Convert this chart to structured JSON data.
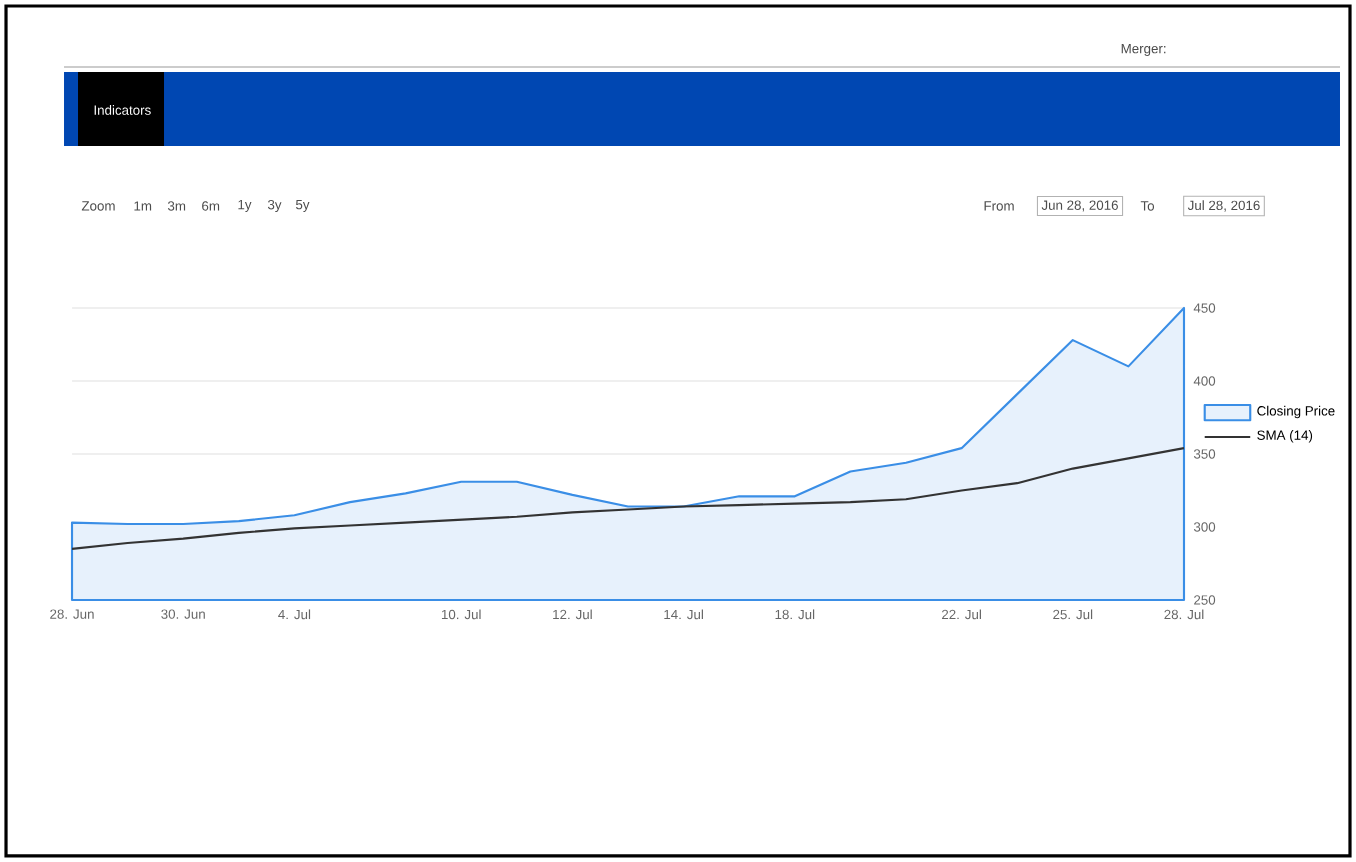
{
  "chart_data": {
    "type": "line",
    "categories": [
      "28. Jun",
      null,
      "30. Jun",
      null,
      "4. Jul",
      null,
      null,
      "10. Jul",
      null,
      "12. Jul",
      null,
      "14. Jul",
      null,
      "18. Jul",
      null,
      null,
      "22. Jul",
      null,
      "25. Jul",
      null,
      "28. Jul"
    ],
    "series": [
      {
        "name": "Closing Price",
        "type": "area",
        "color": "#3a8ee6",
        "values": [
          303,
          302,
          302,
          304,
          308,
          317,
          323,
          331,
          331,
          322,
          314,
          314,
          321,
          321,
          338,
          344,
          354,
          391,
          428,
          410,
          450
        ]
      },
      {
        "name": "SMA (14)",
        "color": "#333333",
        "values": [
          285,
          289,
          292,
          296,
          299,
          301,
          303,
          305,
          307,
          310,
          312,
          314,
          315,
          316,
          317,
          319,
          325,
          330,
          340,
          347,
          354
        ]
      }
    ],
    "ylim": [
      250,
      450
    ],
    "yticks": [
      250,
      300,
      350,
      400,
      450
    ],
    "grid": "y",
    "legend": "right",
    "marker": "none",
    "annotations": [
      "Merger:",
      "Indicators",
      "Zoom",
      "1m",
      "3m",
      "6m",
      "1y",
      "3y",
      "5y",
      "From",
      "Jun 28, 2016",
      "To",
      "Jul 28, 2016"
    ]
  }
}
